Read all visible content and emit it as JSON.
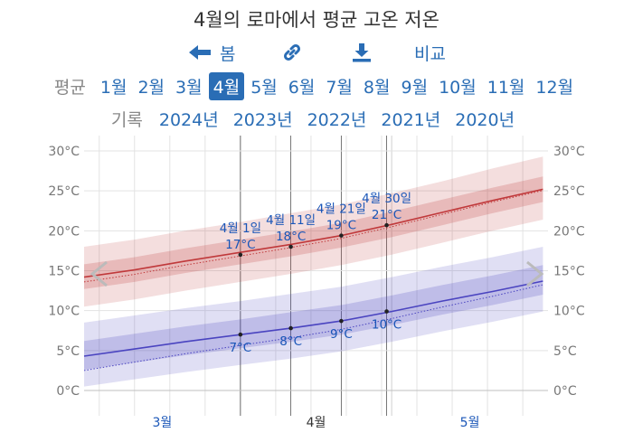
{
  "title": "4월의 로마에서 평균 고온 저온",
  "toolbar": {
    "back_label": "봄",
    "compare_label": "비교"
  },
  "months": {
    "label": "평균",
    "items": [
      "1월",
      "2월",
      "3월",
      "4월",
      "5월",
      "6월",
      "7월",
      "8월",
      "9월",
      "10월",
      "11월",
      "12월"
    ],
    "selected": 3
  },
  "records": {
    "label": "기록",
    "items": [
      "2024년",
      "2023년",
      "2022년",
      "2021년",
      "2020년"
    ]
  },
  "colors": {
    "high": "#c0393b",
    "low": "#4a44c0",
    "label": "#1a56b8"
  },
  "chart_data": {
    "type": "line",
    "ylim": [
      0,
      30
    ],
    "yticks": [
      "0°C",
      "5°C",
      "10°C",
      "15°C",
      "20°C",
      "25°C",
      "30°C"
    ],
    "xlim": [
      0,
      92
    ],
    "xlabels": [
      {
        "x": 15.5,
        "label": "3월"
      },
      {
        "x": 46,
        "label": "4월"
      },
      {
        "x": 76.5,
        "label": "5월"
      }
    ],
    "month_bounds": [
      31,
      61
    ],
    "series": [
      {
        "key": "high",
        "x": [
          0,
          10,
          20,
          31,
          41,
          51,
          61,
          71,
          81,
          91
        ],
        "avg": [
          14.2,
          15.1,
          16.2,
          17.3,
          18.3,
          19.4,
          20.8,
          22.3,
          23.8,
          25.2
        ],
        "band_inner": [
          [
            12.7,
            15.8
          ],
          [
            13.6,
            16.7
          ],
          [
            14.7,
            17.8
          ],
          [
            15.8,
            18.9
          ],
          [
            16.8,
            19.9
          ],
          [
            17.9,
            21.0
          ],
          [
            19.2,
            22.4
          ],
          [
            20.7,
            23.9
          ],
          [
            22.2,
            25.4
          ],
          [
            23.6,
            26.8
          ]
        ],
        "band_outer": [
          [
            10.5,
            18.0
          ],
          [
            11.4,
            18.9
          ],
          [
            12.5,
            20.0
          ],
          [
            13.6,
            21.1
          ],
          [
            14.6,
            22.2
          ],
          [
            15.7,
            23.3
          ],
          [
            17.0,
            24.7
          ],
          [
            18.5,
            26.2
          ],
          [
            20.0,
            27.8
          ],
          [
            21.4,
            29.3
          ]
        ]
      },
      {
        "key": "low",
        "x": [
          0,
          10,
          20,
          31,
          41,
          51,
          61,
          71,
          81,
          91
        ],
        "avg": [
          4.3,
          5.2,
          6.1,
          7.0,
          7.8,
          8.7,
          9.9,
          11.2,
          12.4,
          13.7
        ],
        "band_inner": [
          [
            2.6,
            6.2
          ],
          [
            3.5,
            7.1
          ],
          [
            4.4,
            8.0
          ],
          [
            5.3,
            8.9
          ],
          [
            6.1,
            9.8
          ],
          [
            7.0,
            10.7
          ],
          [
            8.2,
            11.9
          ],
          [
            9.5,
            13.2
          ],
          [
            10.7,
            14.4
          ],
          [
            12.0,
            15.7
          ]
        ],
        "band_outer": [
          [
            0.5,
            8.5
          ],
          [
            1.4,
            9.4
          ],
          [
            2.3,
            10.3
          ],
          [
            3.2,
            11.2
          ],
          [
            4.0,
            12.1
          ],
          [
            4.9,
            13.0
          ],
          [
            6.1,
            14.2
          ],
          [
            7.4,
            15.5
          ],
          [
            8.6,
            16.7
          ],
          [
            9.9,
            18.0
          ]
        ]
      }
    ],
    "annotations": [
      {
        "x": 31,
        "date": "4월 1일",
        "high": 17,
        "high_label": "17°C",
        "low": 7,
        "low_label": "7°C"
      },
      {
        "x": 41,
        "date": "4월 11일",
        "high": 18,
        "high_label": "18°C",
        "low": 7.8,
        "low_label": "8°C"
      },
      {
        "x": 51,
        "date": "4월 21일",
        "high": 19.4,
        "high_label": "19°C",
        "low": 8.7,
        "low_label": "9°C"
      },
      {
        "x": 60,
        "date": "4월 30일",
        "high": 20.7,
        "high_label": "21°C",
        "low": 9.9,
        "low_label": "10°C"
      }
    ]
  }
}
